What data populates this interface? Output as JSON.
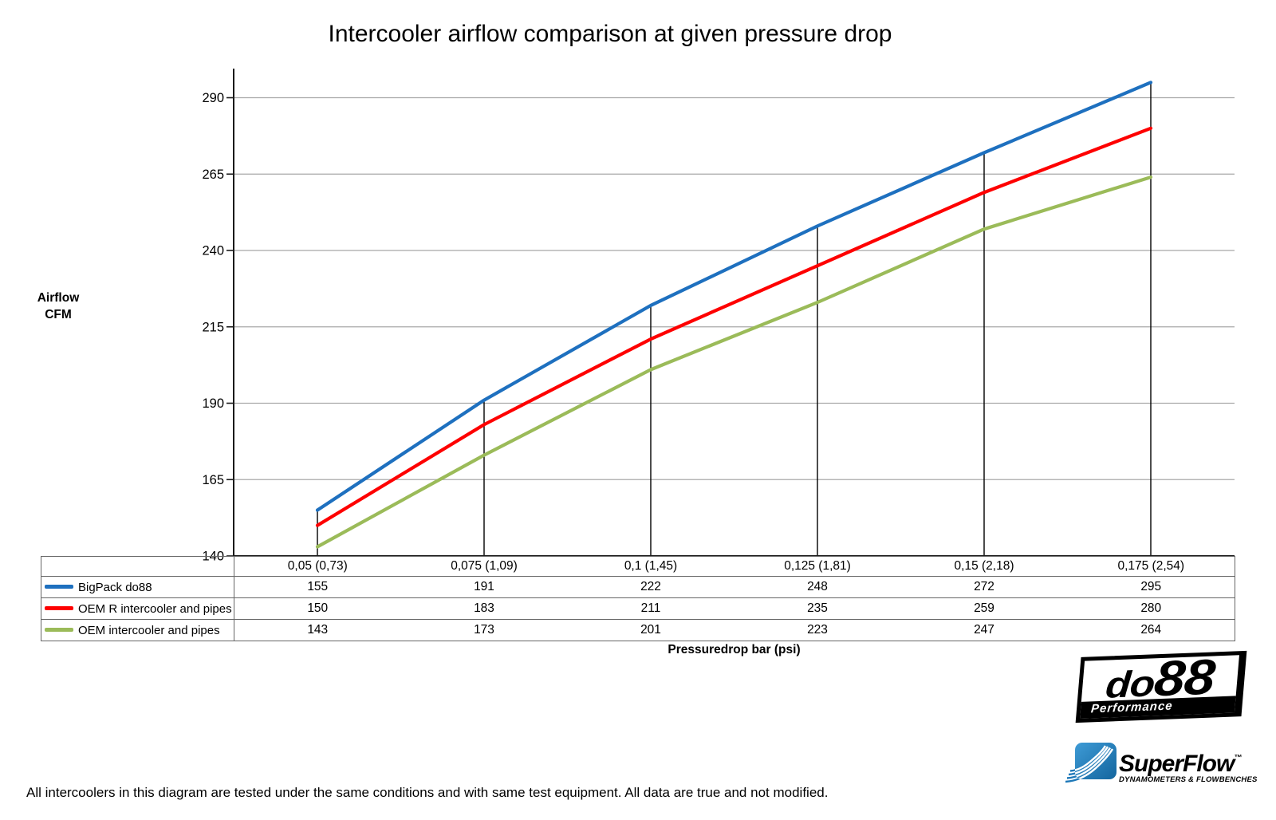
{
  "page": {
    "title": "Intercooler airflow comparison at given pressure drop",
    "footnote": "All intercoolers in this diagram are tested under the same conditions and with same test equipment. All data are true and not modified."
  },
  "y_axis_title": {
    "line1": "Airflow",
    "line2": "CFM"
  },
  "x_axis_title": "Pressuredrop bar (psi)",
  "chart_data": {
    "type": "line",
    "title": "Intercooler airflow comparison at given pressure drop",
    "xlabel": "Pressuredrop bar (psi)",
    "ylabel": "Airflow CFM",
    "categories": [
      "0,05 (0,73)",
      "0,075 (1,09)",
      "0,1 (1,45)",
      "0,125 (1,81)",
      "0,15 (2,18)",
      "0,175 (2,54)"
    ],
    "series": [
      {
        "name": "BigPack do88",
        "color": "#1e70bf",
        "values": [
          155,
          191,
          222,
          248,
          272,
          295
        ]
      },
      {
        "name": "OEM R intercooler and pipes",
        "color": "#fe0000",
        "values": [
          150,
          183,
          211,
          235,
          259,
          280
        ]
      },
      {
        "name": "OEM intercooler and pipes",
        "color": "#9bbb59",
        "values": [
          143,
          173,
          201,
          223,
          247,
          264
        ]
      }
    ],
    "y_ticks": [
      140,
      165,
      190,
      215,
      240,
      265,
      290
    ],
    "ylim": [
      140,
      300
    ],
    "grid": true,
    "droplines": true,
    "legend_position": "table-left",
    "colors": {
      "gridline": "#a8a8a8",
      "axis": "#1a1a1a",
      "dropline": "#000000"
    }
  },
  "logos": {
    "do88": {
      "name_part1": "do",
      "name_part2": "88",
      "tagline": "Performance"
    },
    "superflow": {
      "name": "SuperFlow",
      "trademark": "™",
      "tagline": "DYNAMOMETERS & FLOWBENCHES",
      "brand_color": "#1e78b8",
      "text_color": "#1c4e79"
    }
  }
}
